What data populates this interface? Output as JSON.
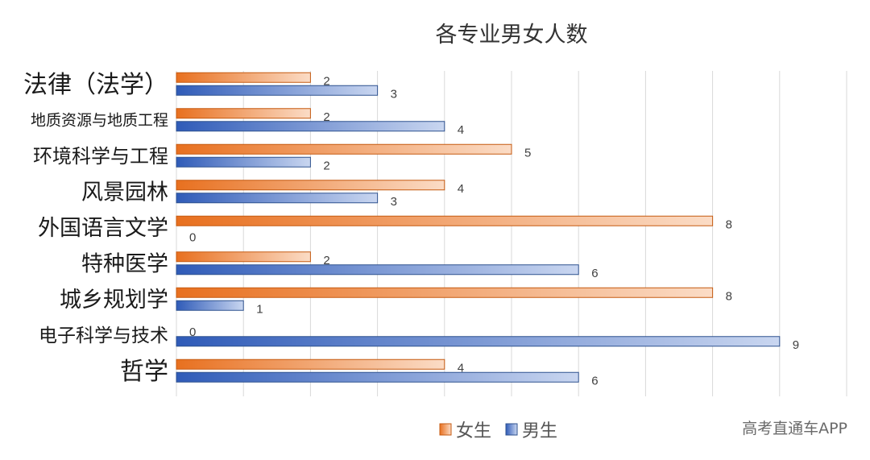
{
  "chart_data": {
    "type": "bar",
    "orientation": "horizontal",
    "title": "各专业男女人数",
    "categories": [
      "法律（法学）",
      "地质资源与地质工程",
      "环境科学与工程",
      "风景园林",
      "外国语言文学",
      "特种医学",
      "城乡规划学",
      "电子科学与技术",
      "哲学"
    ],
    "series": [
      {
        "name": "女生",
        "color": "#ED7D31",
        "values": [
          2,
          2,
          5,
          4,
          8,
          2,
          8,
          0,
          4
        ]
      },
      {
        "name": "男生",
        "color": "#4472C4",
        "values": [
          3,
          4,
          2,
          3,
          0,
          6,
          1,
          9,
          6
        ]
      }
    ],
    "xlim": [
      0,
      10
    ],
    "grid": true,
    "legend": "bottom",
    "data_labels": true
  },
  "watermark": "高考直通车APP"
}
